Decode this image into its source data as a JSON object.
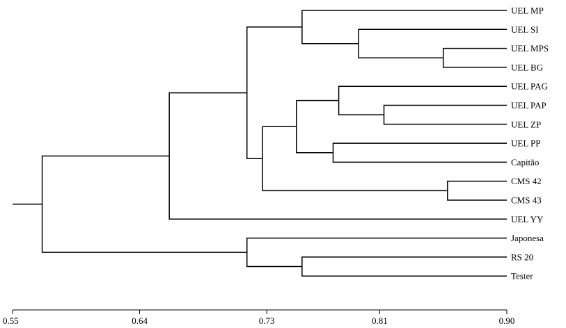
{
  "dendrogram": {
    "axis": {
      "min": 0.55,
      "max": 0.9,
      "ticks": [
        {
          "value": 0.55,
          "label": "0.55"
        },
        {
          "value": 0.64,
          "label": "0.64"
        },
        {
          "value": 0.73,
          "label": "0.73"
        },
        {
          "value": 0.81,
          "label": "0.81"
        },
        {
          "value": 0.9,
          "label": "0.90"
        }
      ]
    },
    "leaves": [
      "UEL MP",
      "UEL SI",
      "UEL MPS",
      "UEL BG",
      "UEL PAG",
      "UEL PAP",
      "UEL ZP",
      "UEL PP",
      "Capitão",
      "CMS 42",
      "CMS 43",
      "UEL YY",
      "Japonesa",
      "RS 20",
      "Tester"
    ],
    "merges": [
      {
        "id": "m1",
        "children": [
          "L2",
          "L3"
        ],
        "value": 0.855
      },
      {
        "id": "m2",
        "children": [
          "L1",
          "m1"
        ],
        "value": 0.795
      },
      {
        "id": "m3",
        "children": [
          "L0",
          "m2"
        ],
        "value": 0.755
      },
      {
        "id": "m4",
        "children": [
          "L5",
          "L6"
        ],
        "value": 0.813
      },
      {
        "id": "m5",
        "children": [
          "L4",
          "m4"
        ],
        "value": 0.781
      },
      {
        "id": "m6",
        "children": [
          "L7",
          "L8"
        ],
        "value": 0.777
      },
      {
        "id": "m7",
        "children": [
          "m5",
          "m6"
        ],
        "value": 0.751
      },
      {
        "id": "m8",
        "children": [
          "L9",
          "L10"
        ],
        "value": 0.858
      },
      {
        "id": "m9",
        "children": [
          "m7",
          "m8"
        ],
        "value": 0.727
      },
      {
        "id": "m10",
        "children": [
          "m3",
          "m9"
        ],
        "value": 0.716
      },
      {
        "id": "m11",
        "children": [
          "L11",
          "m10"
        ],
        "value": 0.661
      },
      {
        "id": "m12",
        "children": [
          "L13",
          "L14"
        ],
        "value": 0.755
      },
      {
        "id": "m13",
        "children": [
          "L12",
          "m12"
        ],
        "value": 0.716
      },
      {
        "id": "m14",
        "children": [
          "m11",
          "m13"
        ],
        "value": 0.571
      }
    ]
  }
}
